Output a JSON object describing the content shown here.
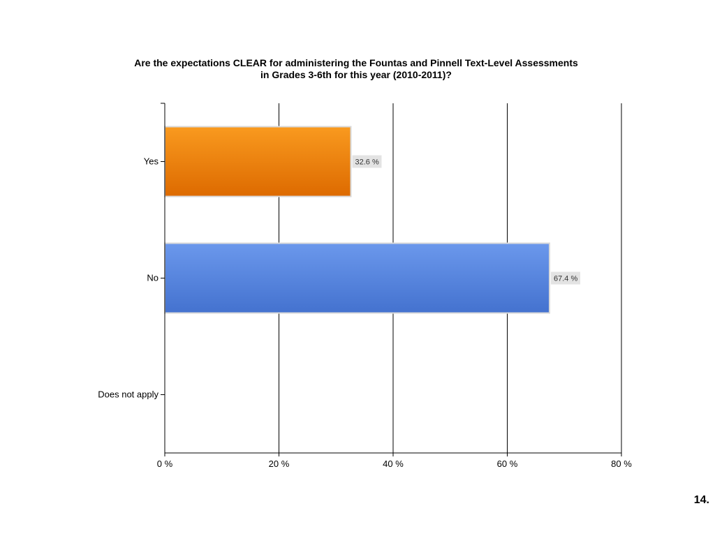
{
  "chart_data": {
    "type": "bar",
    "orientation": "horizontal",
    "title_lines": [
      "Are the expectations CLEAR for administering the Fountas and Pinnell Text-Level Assessments",
      "in Grades 3-6th for this year (2010-2011)?"
    ],
    "categories": [
      "Yes",
      "No",
      "Does not apply"
    ],
    "values": [
      32.6,
      67.4,
      0
    ],
    "value_labels": [
      "32.6 %",
      "67.4 %",
      ""
    ],
    "xlim": [
      0,
      80
    ],
    "x_ticks": [
      0,
      20,
      40,
      60,
      80
    ],
    "x_tick_labels": [
      "0 %",
      "20 %",
      "40 %",
      "60 %",
      "80 %"
    ],
    "grid": "vertical",
    "bar_colors": [
      {
        "top": "#f99a1f",
        "bottom": "#dd6a00",
        "border": "#d9d9d9"
      },
      {
        "top": "#6b98ec",
        "bottom": "#4472cf",
        "border": "#d9d9d9"
      },
      {
        "top": "#6b98ec",
        "bottom": "#4472cf",
        "border": "#d9d9d9"
      }
    ]
  },
  "slide": {
    "number": "14."
  }
}
